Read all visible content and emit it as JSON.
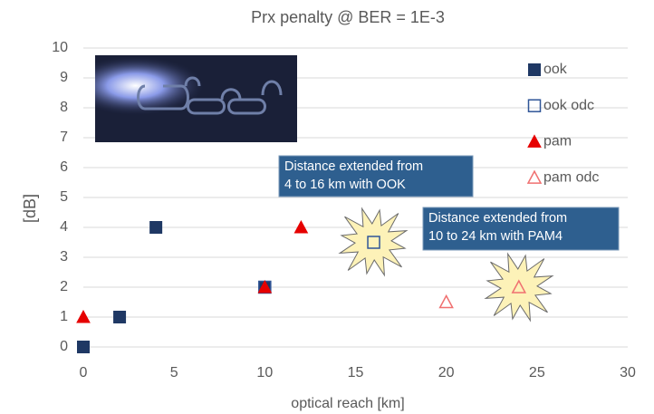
{
  "chart_data": {
    "type": "scatter",
    "title": "Prx penalty @ BER = 1E-3",
    "x_label": "optical reach [km]",
    "y_label": "[dB]",
    "xlim": [
      0,
      30
    ],
    "xticks": [
      0,
      5,
      10,
      15,
      20,
      25,
      30
    ],
    "ylim": [
      0,
      10
    ],
    "yticks": [
      0,
      1,
      2,
      3,
      4,
      5,
      6,
      7,
      8,
      9,
      10
    ],
    "grid": true,
    "legend": "right",
    "series": [
      {
        "name": "ook",
        "color": "#1f3864",
        "marker": "square",
        "filled": true,
        "x": [
          0,
          2,
          4,
          10
        ],
        "values": [
          0,
          1,
          4,
          2
        ]
      },
      {
        "name": "ook odc",
        "color": "#2f5597",
        "marker": "square",
        "filled": false,
        "x": [
          10,
          16
        ],
        "values": [
          2,
          3.5
        ]
      },
      {
        "name": "pam",
        "color": "#e60000",
        "marker": "triangle",
        "filled": true,
        "x": [
          0,
          10,
          12
        ],
        "values": [
          1,
          2,
          4
        ]
      },
      {
        "name": "pam odc",
        "color": "#f07070",
        "marker": "triangle",
        "filled": false,
        "x": [
          20,
          24
        ],
        "values": [
          1.5,
          2
        ]
      }
    ],
    "annotations": [
      {
        "lines": [
          "Distance extended  from",
          "4 to 16 km with OOK"
        ]
      },
      {
        "lines": [
          "Distance extended  from",
          "10 to 24 km with PAM4"
        ]
      }
    ]
  }
}
